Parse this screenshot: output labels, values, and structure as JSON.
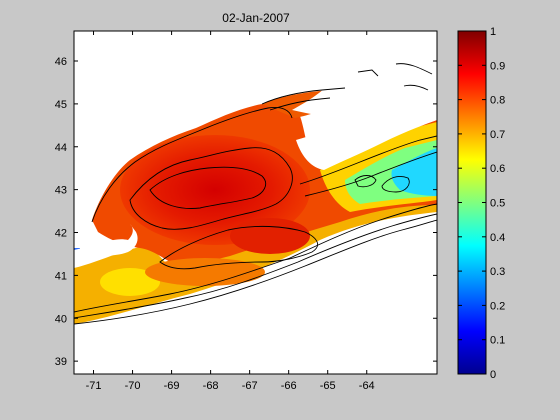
{
  "title": "02-Jan-2007",
  "map": {
    "lon_ticks": [
      "-71",
      "-70",
      "-69",
      "-68",
      "-67",
      "-66",
      "-65",
      "-64"
    ],
    "lat_ticks": [
      "46",
      "45",
      "44",
      "43",
      "42",
      "41",
      "40",
      "39"
    ],
    "lon_range": [
      -71.5,
      -62.2
    ],
    "lat_range": [
      38.7,
      46.7
    ],
    "variable_range": [
      0,
      1
    ],
    "colormap": "jet",
    "colors": {
      "figure_background": "#c8c8c8",
      "land": "#ffffff",
      "contour": "#000000"
    }
  },
  "colorbar": {
    "ticks": [
      "1",
      "0.9",
      "0.8",
      "0.7",
      "0.6",
      "0.5",
      "0.4",
      "0.3",
      "0.2",
      "0.1",
      "0"
    ],
    "placement": "right"
  }
}
